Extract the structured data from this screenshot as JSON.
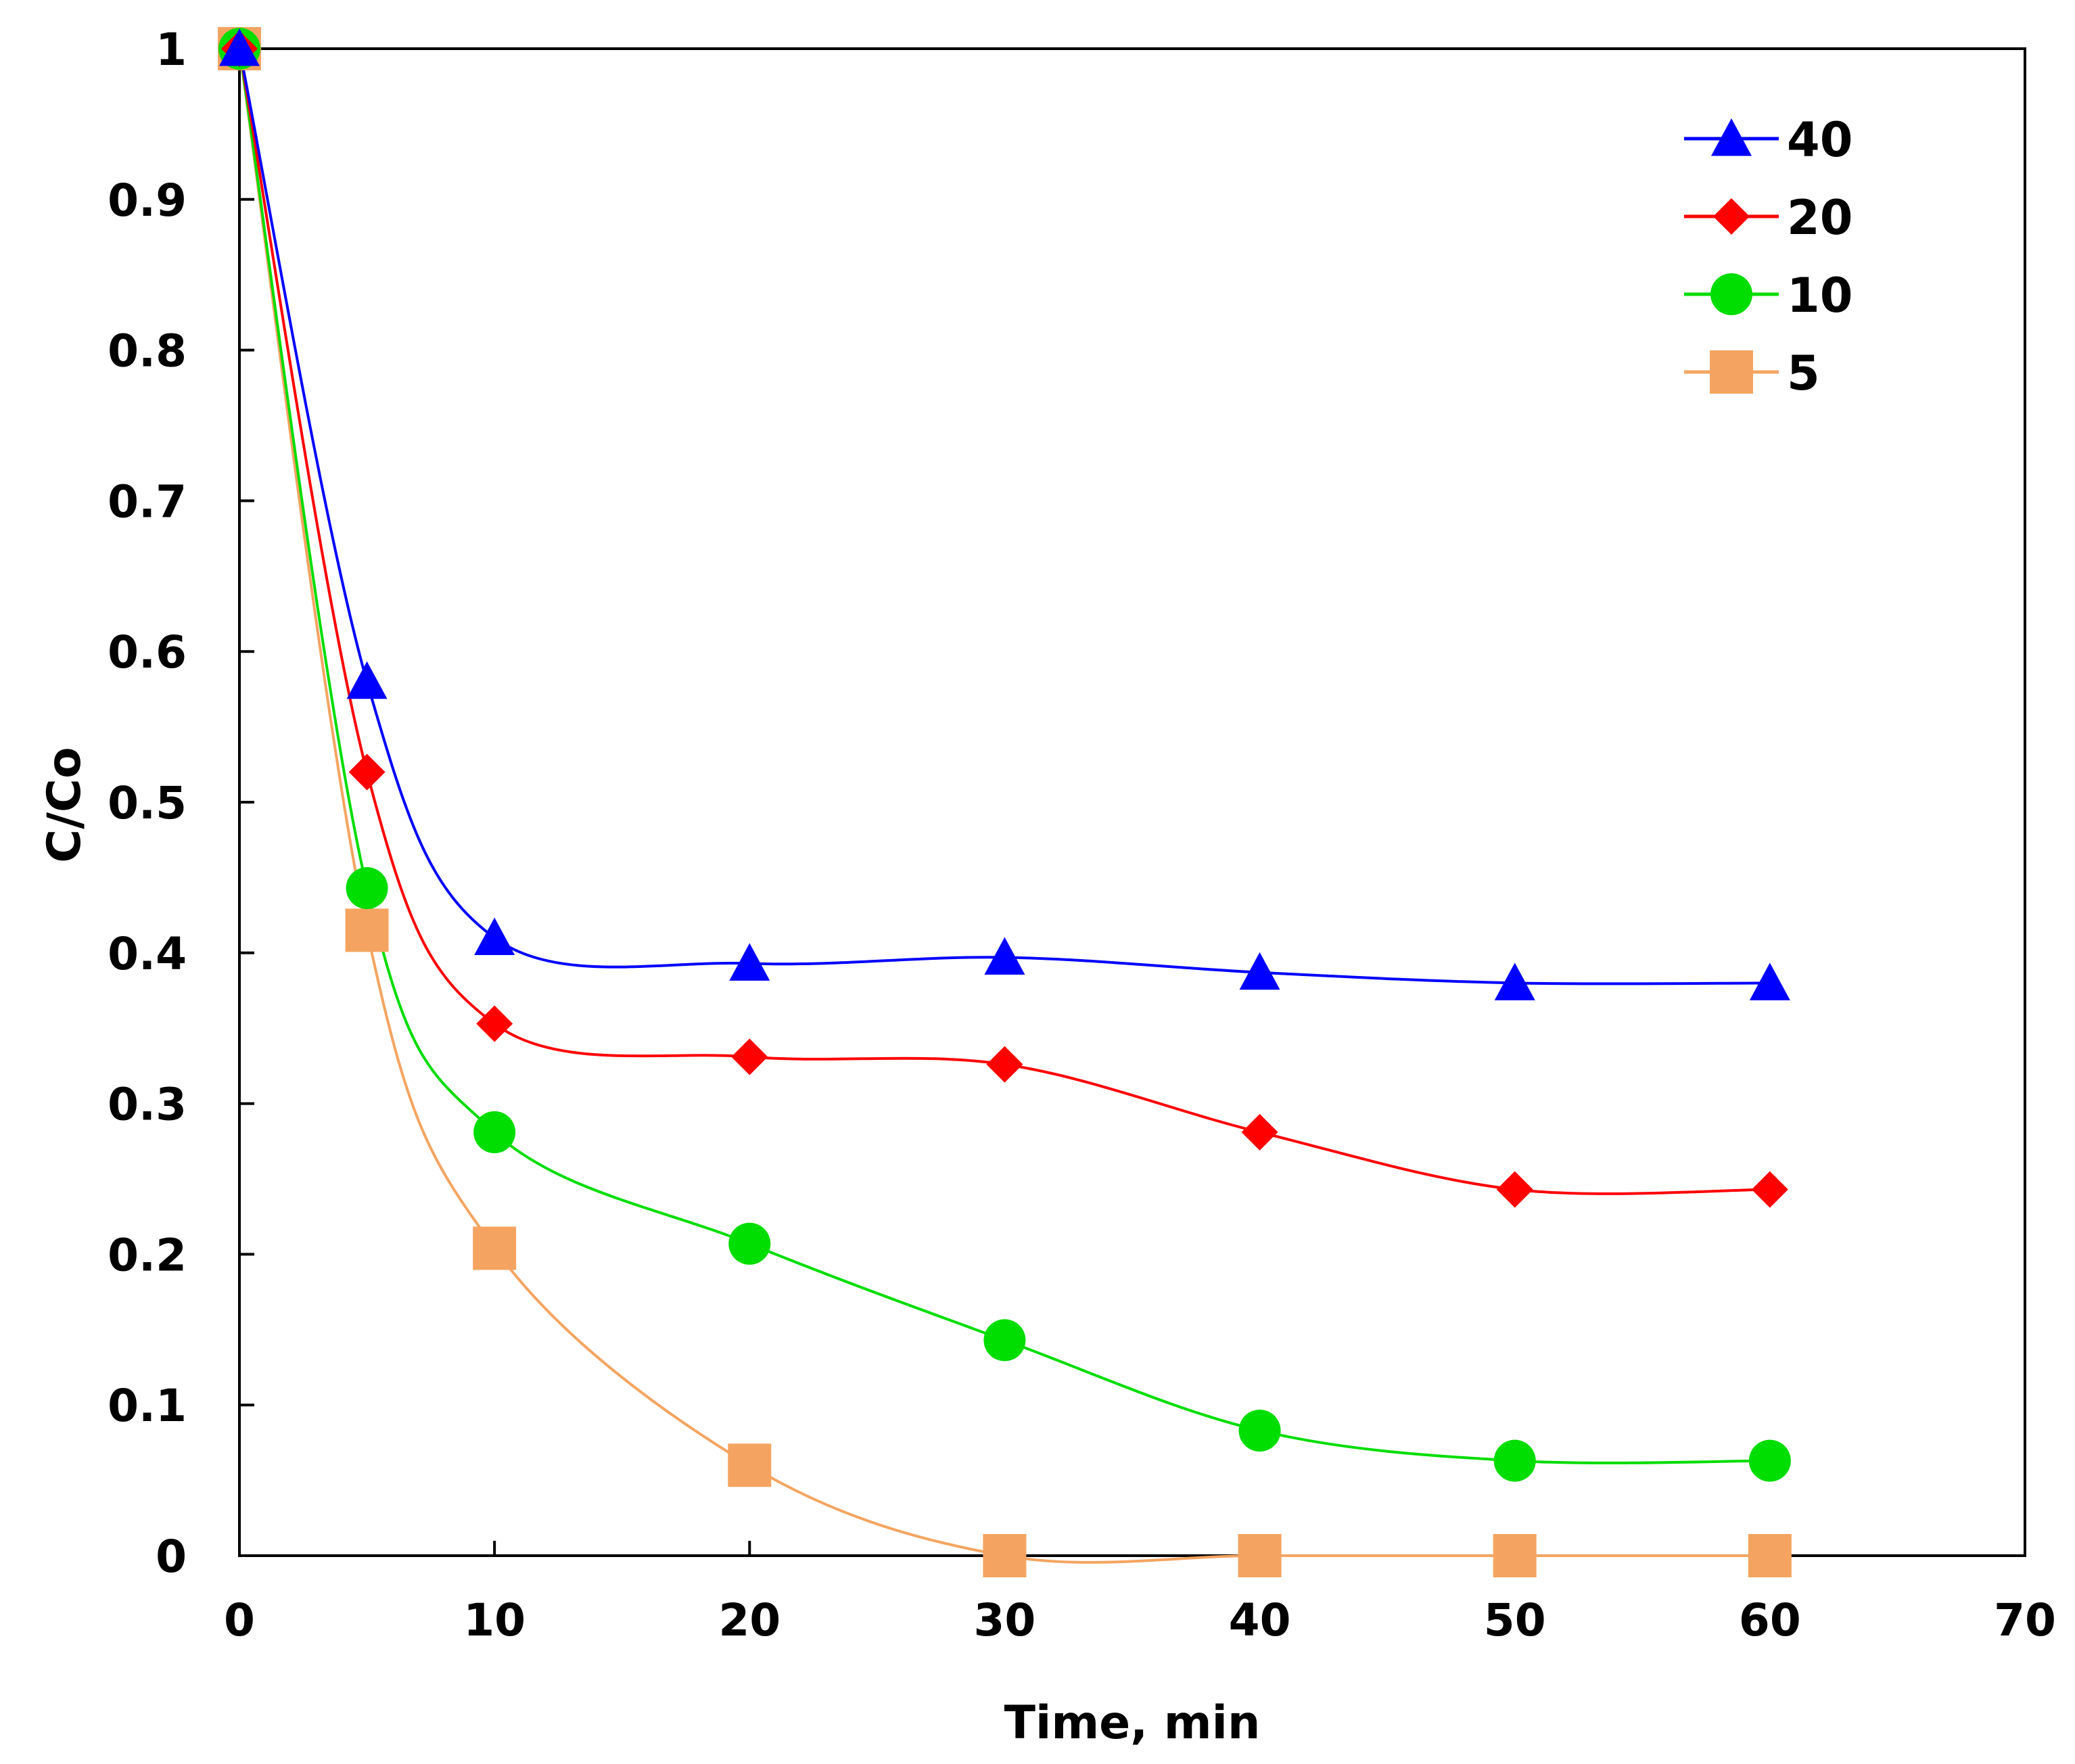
{
  "chart_data": {
    "type": "line",
    "title": "",
    "xlabel": "Time, min",
    "ylabel": "C/Co",
    "xlim": [
      0,
      70
    ],
    "ylim": [
      0,
      1
    ],
    "xticks": [
      0,
      10,
      20,
      30,
      40,
      50,
      60,
      70
    ],
    "yticks": [
      0,
      0.1,
      0.2,
      0.3,
      0.4,
      0.5,
      0.6,
      0.7,
      0.8,
      0.9,
      1
    ],
    "ytick_labels": [
      "0",
      "0.1",
      "0.2",
      "0.3",
      "0.4",
      "0.5",
      "0.6",
      "0.7",
      "0.8",
      "0.9",
      "1"
    ],
    "grid": false,
    "legend_position": "top-right",
    "x": [
      0,
      5,
      10,
      20,
      30,
      40,
      50,
      60
    ],
    "series": [
      {
        "name": "40",
        "marker": "triangle",
        "color": "#0000ff",
        "values": [
          1,
          0.58,
          0.41,
          0.393,
          0.397,
          0.387,
          0.38,
          0.38
        ]
      },
      {
        "name": "20",
        "marker": "diamond",
        "color": "#ff0000",
        "values": [
          1,
          0.52,
          0.353,
          0.331,
          0.326,
          0.281,
          0.243,
          0.243
        ]
      },
      {
        "name": "10",
        "marker": "circle",
        "color": "#00dd00",
        "values": [
          1,
          0.443,
          0.281,
          0.207,
          0.143,
          0.083,
          0.063,
          0.063
        ]
      },
      {
        "name": "5",
        "marker": "square",
        "color": "#f4a460",
        "values": [
          1,
          0.415,
          0.204,
          0.06,
          0,
          0,
          0,
          0
        ]
      }
    ]
  }
}
